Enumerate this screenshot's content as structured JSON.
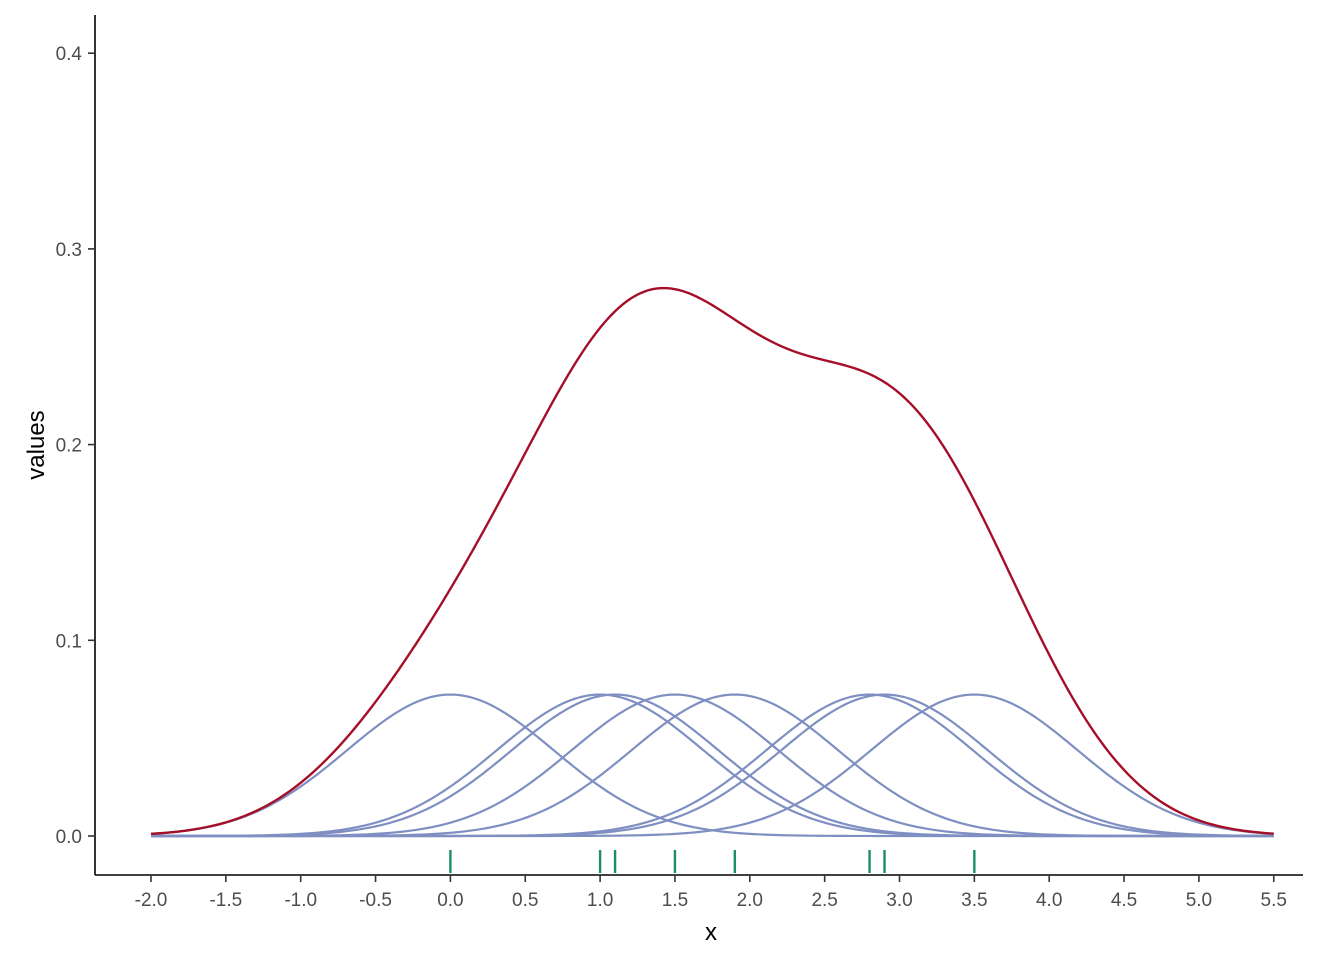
{
  "chart_data": {
    "type": "line",
    "title": "",
    "xlabel": "x",
    "ylabel": "values",
    "xlim": [
      -2.0,
      5.5
    ],
    "ylim": [
      0,
      0.4
    ],
    "x_ticks": [
      "-2.0",
      "-1.5",
      "-1.0",
      "-0.5",
      "0.0",
      "0.5",
      "1.0",
      "1.5",
      "2.0",
      "2.5",
      "3.0",
      "3.5",
      "4.0",
      "4.5",
      "5.0",
      "5.5"
    ],
    "y_ticks": [
      "0.0",
      "0.1",
      "0.2",
      "0.3",
      "0.4"
    ],
    "observations": [
      0.0,
      1.0,
      1.1,
      1.5,
      1.9,
      2.8,
      2.9,
      3.5
    ],
    "kernel_bandwidth": 0.69,
    "kernel_weight": 0.125,
    "peak_density": 0.28,
    "grid": false,
    "legend": "none",
    "series": [
      {
        "role": "kernels",
        "color": "#7F8FC2"
      },
      {
        "role": "density",
        "color": "#A50F28"
      },
      {
        "role": "rug",
        "color": "#1B8C6E"
      }
    ]
  }
}
